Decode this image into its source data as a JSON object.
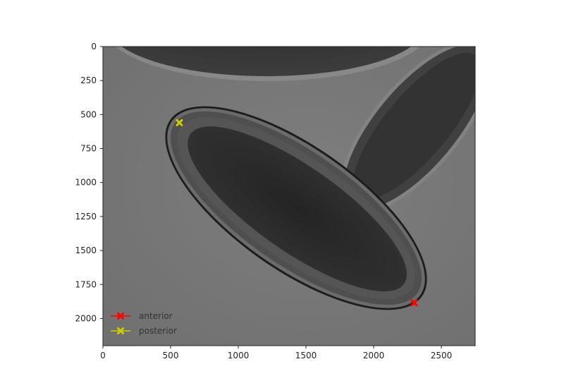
{
  "chart_data": {
    "type": "scatter",
    "title": "",
    "xlabel": "",
    "ylabel": "",
    "background": "grayscale microscopy image of an ellipsoid embryo",
    "xlim": [
      0,
      2750
    ],
    "ylim": [
      2200,
      0
    ],
    "y_inverted": true,
    "grid": false,
    "legend_position": "lower-left",
    "x_ticks": [
      0,
      500,
      1000,
      1500,
      2000,
      2500
    ],
    "x_tick_labels": [
      "0",
      "500",
      "1000",
      "1500",
      "2000",
      "2500"
    ],
    "y_ticks": [
      0,
      250,
      500,
      750,
      1000,
      1250,
      1500,
      1750,
      2000
    ],
    "y_tick_labels": [
      "0",
      "250",
      "500",
      "750",
      "1000",
      "1250",
      "1500",
      "1750",
      "2000"
    ],
    "series": [
      {
        "name": "anterior",
        "color": "#ff0000",
        "marker": "x",
        "x": [
          2300
        ],
        "y": [
          1885
        ]
      },
      {
        "name": "posterior",
        "color": "#cccc00",
        "marker": "x",
        "x": [
          565
        ],
        "y": [
          560
        ]
      }
    ]
  }
}
